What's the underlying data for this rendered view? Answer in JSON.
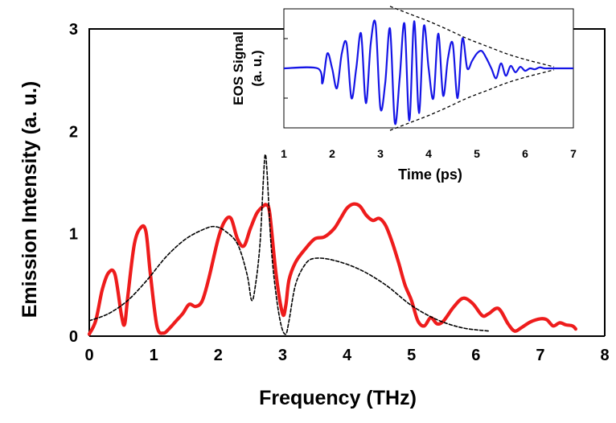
{
  "chart_data": [
    {
      "type": "line",
      "title": "",
      "xlabel": "Frequency  (THz)",
      "ylabel": "Emission Intensity  (a. u.)",
      "xlim": [
        0,
        8
      ],
      "ylim": [
        0,
        3
      ],
      "x_ticks": [
        "0",
        "1",
        "2",
        "3",
        "4",
        "5",
        "6",
        "7",
        "8"
      ],
      "y_ticks": [
        "0",
        "1",
        "2",
        "3"
      ],
      "grid": false,
      "colors": {
        "measured": "#ee1c1c",
        "reference": "#000000",
        "axis": "#000000"
      },
      "series": [
        {
          "style": "solid-red",
          "x": [
            0.0,
            0.1,
            0.2,
            0.3,
            0.4,
            0.5,
            0.55,
            0.6,
            0.7,
            0.8,
            0.88,
            0.95,
            1.05,
            1.15,
            1.25,
            1.35,
            1.45,
            1.55,
            1.65,
            1.75,
            1.85,
            2.0,
            2.1,
            2.2,
            2.3,
            2.4,
            2.5,
            2.6,
            2.7,
            2.75,
            2.8,
            2.9,
            3.0,
            3.05,
            3.1,
            3.2,
            3.35,
            3.5,
            3.65,
            3.8,
            3.9,
            4.0,
            4.1,
            4.2,
            4.3,
            4.4,
            4.5,
            4.6,
            4.7,
            4.8,
            4.9,
            5.0,
            5.1,
            5.2,
            5.3,
            5.4,
            5.5,
            5.65,
            5.8,
            5.95,
            6.1,
            6.2,
            6.35,
            6.5,
            6.6,
            6.7,
            6.85,
            7.0,
            7.1,
            7.2,
            7.3,
            7.4,
            7.5,
            7.55
          ],
          "y": [
            0.02,
            0.15,
            0.45,
            0.62,
            0.6,
            0.2,
            0.12,
            0.4,
            0.9,
            1.06,
            1.02,
            0.6,
            0.1,
            0.03,
            0.08,
            0.15,
            0.22,
            0.31,
            0.29,
            0.34,
            0.55,
            0.95,
            1.12,
            1.15,
            0.95,
            0.88,
            1.05,
            1.2,
            1.27,
            1.28,
            1.2,
            0.6,
            0.22,
            0.3,
            0.55,
            0.72,
            0.85,
            0.95,
            0.97,
            1.05,
            1.15,
            1.25,
            1.29,
            1.27,
            1.18,
            1.13,
            1.15,
            1.08,
            0.92,
            0.72,
            0.5,
            0.35,
            0.15,
            0.1,
            0.18,
            0.12,
            0.15,
            0.28,
            0.37,
            0.32,
            0.2,
            0.22,
            0.27,
            0.12,
            0.05,
            0.08,
            0.14,
            0.17,
            0.16,
            0.1,
            0.13,
            0.11,
            0.1,
            0.07
          ]
        },
        {
          "style": "dashed-black",
          "x": [
            0.0,
            0.3,
            0.6,
            0.9,
            1.2,
            1.5,
            1.8,
            1.95,
            2.1,
            2.3,
            2.45,
            2.52,
            2.58,
            2.65,
            2.7,
            2.73,
            2.76,
            2.82,
            2.9,
            2.98,
            3.05,
            3.1,
            3.2,
            3.35,
            3.5,
            3.8,
            4.2,
            4.6,
            5.0,
            5.4,
            5.8,
            6.2
          ],
          "y": [
            0.15,
            0.22,
            0.35,
            0.55,
            0.78,
            0.95,
            1.05,
            1.07,
            1.03,
            0.9,
            0.6,
            0.35,
            0.5,
            0.9,
            1.5,
            1.77,
            1.6,
            0.9,
            0.4,
            0.1,
            0.02,
            0.15,
            0.5,
            0.7,
            0.76,
            0.74,
            0.65,
            0.5,
            0.3,
            0.16,
            0.08,
            0.05
          ]
        }
      ]
    },
    {
      "type": "line",
      "title": "",
      "xlabel": "Time (ps)",
      "ylabel": "EOS Signal (a. u.)",
      "xlim": [
        1,
        7
      ],
      "ylim": [
        -1.2,
        1.2
      ],
      "x_ticks": [
        "1",
        "2",
        "3",
        "4",
        "5",
        "6",
        "7"
      ],
      "grid": false,
      "colors": {
        "signal": "#1515e6",
        "envelope": "#000000"
      },
      "series": [
        {
          "style": "solid-blue",
          "x": [
            1.0,
            1.7,
            1.8,
            1.9,
            2.0,
            2.1,
            2.2,
            2.3,
            2.4,
            2.5,
            2.6,
            2.7,
            2.8,
            2.9,
            3.0,
            3.1,
            3.2,
            3.3,
            3.4,
            3.5,
            3.6,
            3.7,
            3.8,
            3.9,
            4.0,
            4.1,
            4.2,
            4.3,
            4.4,
            4.5,
            4.6,
            4.7,
            4.8,
            4.9,
            5.0,
            5.1,
            5.2,
            5.3,
            5.4,
            5.5,
            5.6,
            5.7,
            5.8,
            5.9,
            6.0,
            6.1,
            6.2,
            6.3,
            6.4,
            6.5,
            7.0
          ],
          "y": [
            0.0,
            0.0,
            -0.3,
            0.3,
            0.0,
            -0.4,
            0.3,
            0.5,
            -0.6,
            0.0,
            0.7,
            -0.7,
            0.5,
            0.9,
            -0.8,
            -0.3,
            0.8,
            -1.1,
            -0.2,
            0.9,
            -1.05,
            0.95,
            -0.9,
            0.85,
            0.0,
            -0.6,
            0.7,
            -0.55,
            0.2,
            0.5,
            -0.6,
            0.6,
            0.0,
            0.15,
            0.3,
            0.35,
            0.2,
            0.0,
            -0.2,
            0.1,
            -0.15,
            0.05,
            -0.08,
            0.03,
            -0.05,
            0.0,
            -0.02,
            0.02,
            0.0,
            0.0,
            0.0
          ]
        }
      ],
      "envelope": {
        "x": [
          3.2,
          3.6,
          4.0,
          4.4,
          4.8,
          5.2,
          5.6,
          6.0,
          6.4,
          6.6
        ],
        "upper": [
          1.25,
          1.1,
          0.95,
          0.78,
          0.6,
          0.45,
          0.3,
          0.18,
          0.08,
          0.03
        ],
        "lower": [
          -1.25,
          -1.1,
          -0.95,
          -0.78,
          -0.6,
          -0.45,
          -0.3,
          -0.18,
          -0.08,
          -0.03
        ]
      }
    }
  ]
}
